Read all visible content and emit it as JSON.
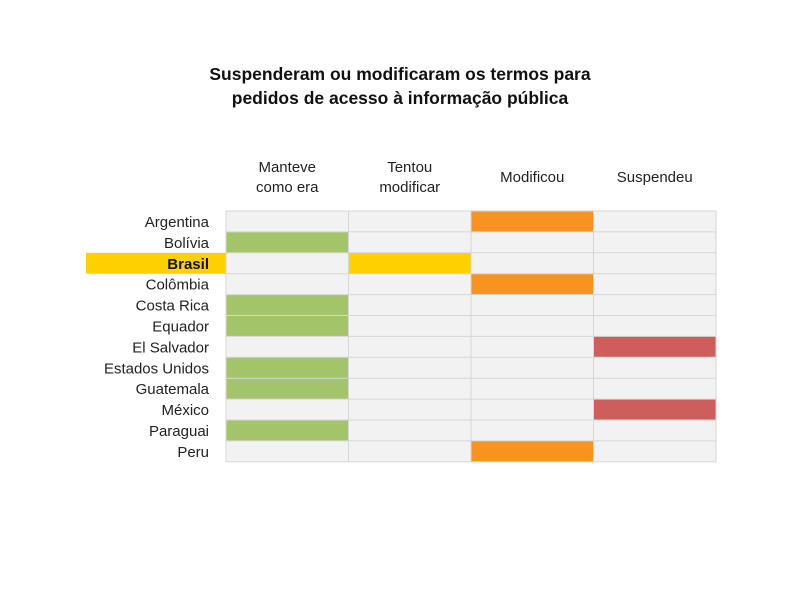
{
  "chart_data": {
    "type": "table",
    "title_lines": [
      "Suspenderam ou modificaram os termos para",
      "pedidos de acesso à informação pública"
    ],
    "columns": [
      {
        "lines": [
          "Manteve",
          "como era"
        ],
        "color": "#a4c46a"
      },
      {
        "lines": [
          "Tentou",
          "modificar"
        ],
        "color": "#ffd100"
      },
      {
        "lines": [
          "Modificou"
        ],
        "color": "#f7931e"
      },
      {
        "lines": [
          "Suspendeu"
        ],
        "color": "#cd5e5c"
      }
    ],
    "rows": [
      {
        "name": "Argentina",
        "status": 2
      },
      {
        "name": "Bolívia",
        "status": 0
      },
      {
        "name": "Brasil",
        "status": 1,
        "highlight": true
      },
      {
        "name": "Colômbia",
        "status": 2
      },
      {
        "name": "Costa Rica",
        "status": 0
      },
      {
        "name": "Equador",
        "status": 0
      },
      {
        "name": "El Salvador",
        "status": 3
      },
      {
        "name": "Estados Unidos",
        "status": 0
      },
      {
        "name": "Guatemala",
        "status": 0
      },
      {
        "name": "México",
        "status": 3
      },
      {
        "name": "Paraguai",
        "status": 0
      },
      {
        "name": "Peru",
        "status": 2
      }
    ],
    "empty_cell_color": "#f2f2f2",
    "grid_color": "#d6d6d6",
    "highlight_color": "#ffd100"
  }
}
